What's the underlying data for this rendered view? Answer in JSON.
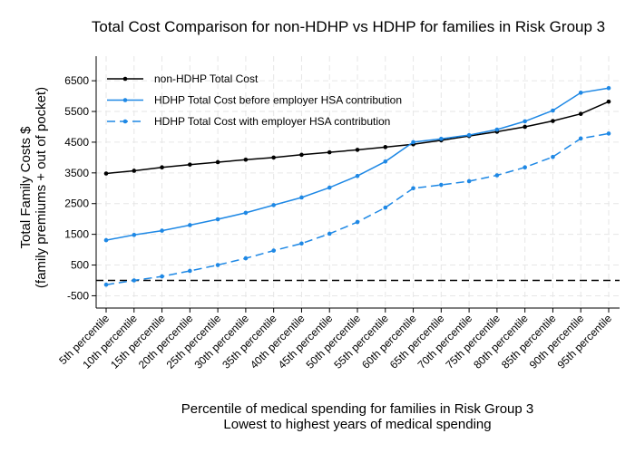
{
  "chart_data": {
    "type": "line",
    "title": "Total Cost Comparison for non-HDHP vs HDHP for families in Risk Group 3",
    "xlabel": [
      "Percentile of medical spending for families in Risk Group 3",
      "Lowest to highest years of medical spending"
    ],
    "ylabel": [
      "Total Family Costs $",
      "(family premiums + out of pocket)"
    ],
    "categories": [
      "5th percentile",
      "10th percentile",
      "15th percentile",
      "20th percentile",
      "25th percentile",
      "30th percentile",
      "35th percentile",
      "40th percentile",
      "45th percentile",
      "50th percentile",
      "55th percentile",
      "60th percentile",
      "65th percentile",
      "70th percentile",
      "75th percentile",
      "80th percentile",
      "85th percentile",
      "90th percentile",
      "95th percentile"
    ],
    "yticks": [
      -500,
      500,
      1500,
      2500,
      3500,
      4500,
      5500,
      6500
    ],
    "ylim": [
      -900,
      7300
    ],
    "reference_line": 0,
    "grid": true,
    "legend_position": "top-left",
    "series": [
      {
        "name": "non-HDHP Total Cost",
        "color": "#000000",
        "dash": "solid",
        "values": [
          3480,
          3570,
          3680,
          3770,
          3850,
          3930,
          4000,
          4090,
          4170,
          4250,
          4340,
          4430,
          4560,
          4700,
          4840,
          5000,
          5190,
          5420,
          5820
        ]
      },
      {
        "name": "HDHP Total Cost before employer HSA contribution",
        "color": "#1e88e5",
        "dash": "solid",
        "values": [
          1310,
          1480,
          1620,
          1800,
          1990,
          2200,
          2450,
          2700,
          3020,
          3400,
          3870,
          4500,
          4610,
          4730,
          4910,
          5180,
          5530,
          6110,
          6260
        ]
      },
      {
        "name": "HDHP Total Cost with employer HSA contribution",
        "color": "#1e88e5",
        "dash": "dashed",
        "values": [
          -140,
          0,
          130,
          310,
          500,
          720,
          970,
          1200,
          1520,
          1900,
          2370,
          3000,
          3110,
          3230,
          3420,
          3680,
          4020,
          4620,
          4780
        ]
      }
    ]
  }
}
